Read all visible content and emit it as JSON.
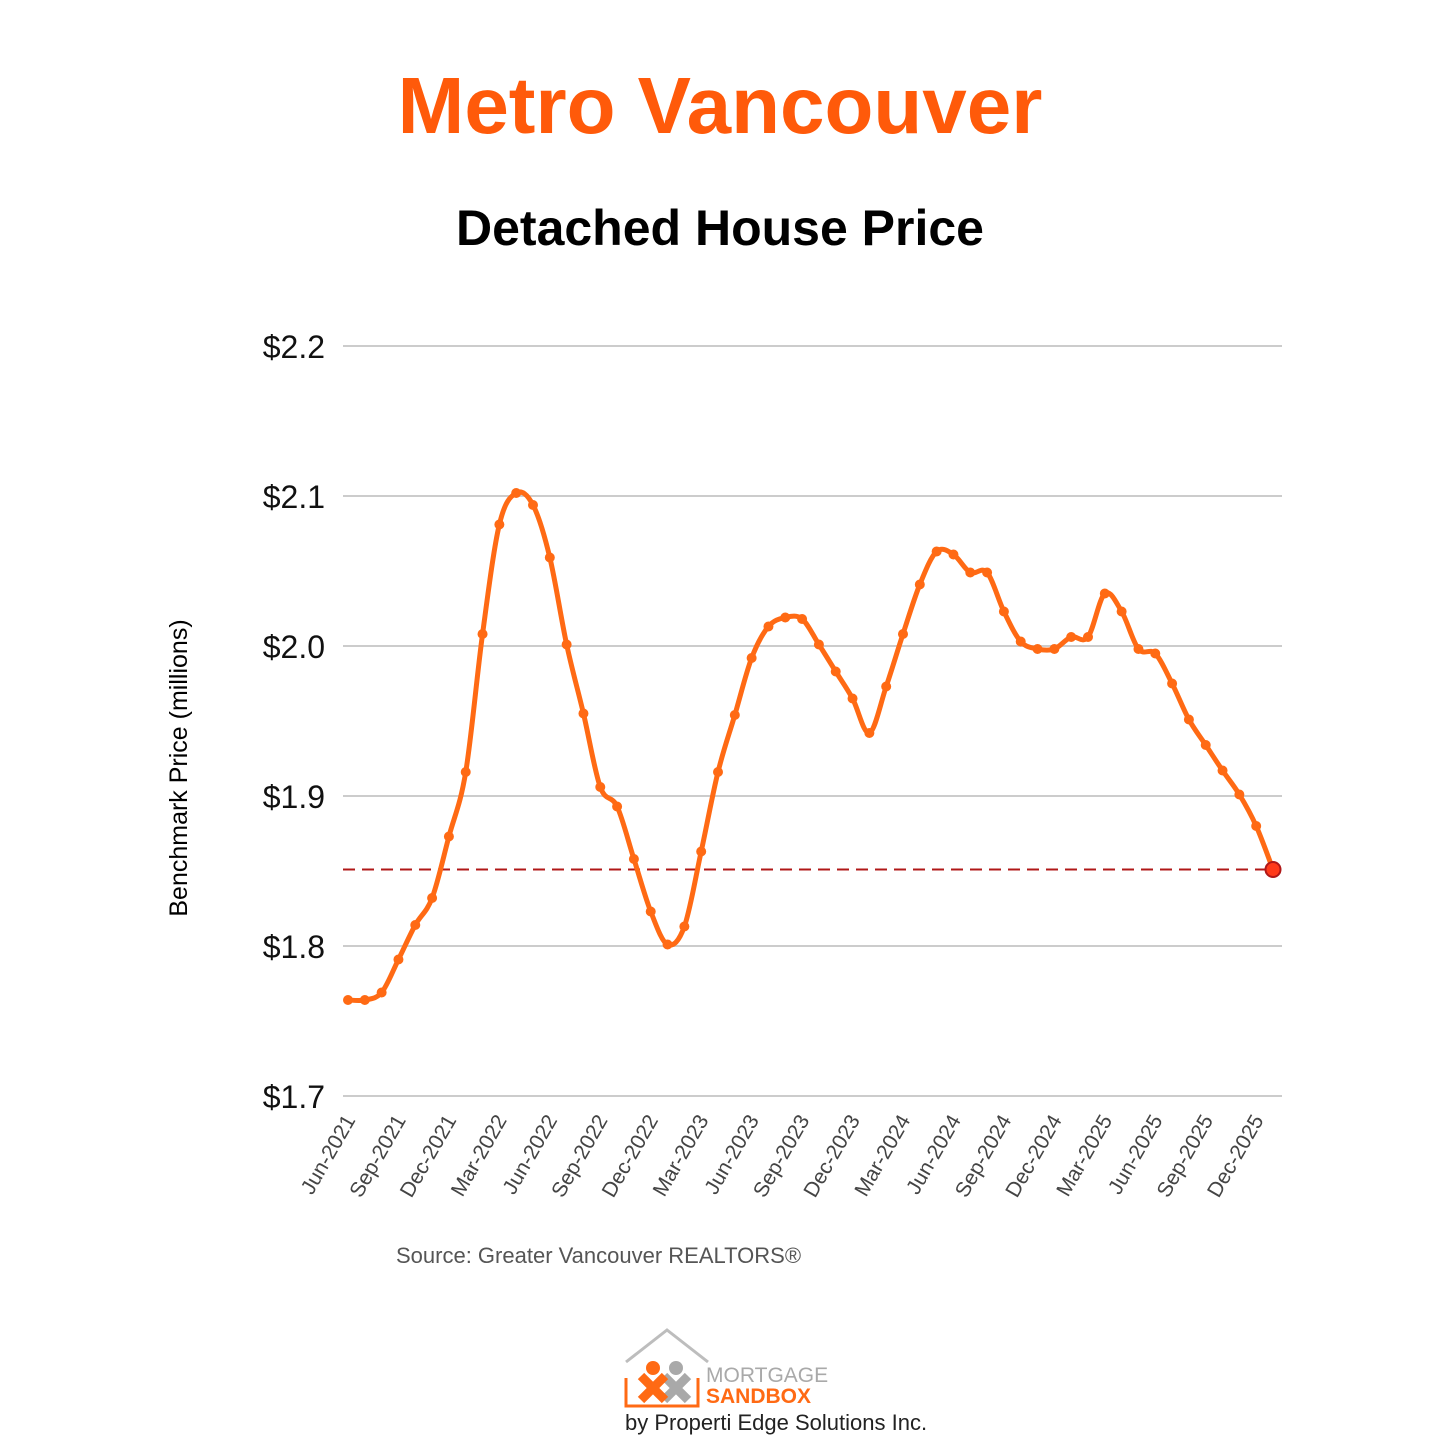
{
  "header": {
    "title": "Metro Vancouver",
    "subtitle": "Detached House Price"
  },
  "footer": {
    "source": "Source: Greater Vancouver REALTORS®",
    "logo_line1": "MORTGAGE",
    "logo_line2": "SANDBOX",
    "byline": "by Properti Edge Solutions Inc."
  },
  "colors": {
    "title": "#ff5a0a",
    "line": "#ff6a14",
    "reference_line": "#b01818",
    "grid": "#cccccc",
    "logo_orange": "#ff6a14",
    "logo_gray": "#a9a9a9"
  },
  "chart_data": {
    "type": "line",
    "title": "Metro Vancouver",
    "subtitle": "Detached House Price",
    "xlabel": "",
    "ylabel": "Benchmark Price (millions)",
    "ylim": [
      1.7,
      2.2
    ],
    "yticks": [
      1.7,
      1.8,
      1.9,
      2.0,
      2.1,
      2.2
    ],
    "ytick_labels": [
      "$1.7",
      "$1.8",
      "$1.9",
      "$2.0",
      "$2.1",
      "$2.2"
    ],
    "xtick_labels": [
      "Jun-2021",
      "Sep-2021",
      "Dec-2021",
      "Mar-2022",
      "Jun-2022",
      "Sep-2022",
      "Dec-2022",
      "Mar-2023",
      "Jun-2023",
      "Sep-2023",
      "Dec-2023",
      "Mar-2024",
      "Jun-2024",
      "Sep-2024",
      "Dec-2024",
      "Mar-2025",
      "Jun-2025",
      "Sep-2025",
      "Dec-2025"
    ],
    "x_start": "Jun-2021",
    "x_end": "Jan-2026",
    "grid": true,
    "legend": "none",
    "reference_line": {
      "y": 1.851,
      "style": "dashed"
    },
    "highlight_last_point": true,
    "series": [
      {
        "values": [
          1.764,
          1.764,
          1.769,
          1.791,
          1.814,
          1.832,
          1.873,
          1.916,
          2.008,
          2.081,
          2.102,
          2.094,
          2.059,
          2.001,
          1.955,
          1.906,
          1.893,
          1.858,
          1.823,
          1.801,
          1.813,
          1.863,
          1.916,
          1.954,
          1.992,
          2.013,
          2.019,
          2.018,
          2.001,
          1.983,
          1.965,
          1.942,
          1.973,
          2.008,
          2.041,
          2.063,
          2.061,
          2.049,
          2.049,
          2.023,
          2.003,
          1.998,
          1.998,
          2.006,
          2.006,
          2.035,
          2.023,
          1.998,
          1.995,
          1.975,
          1.951,
          1.934,
          1.917,
          1.901,
          1.88,
          1.851
        ]
      }
    ]
  }
}
